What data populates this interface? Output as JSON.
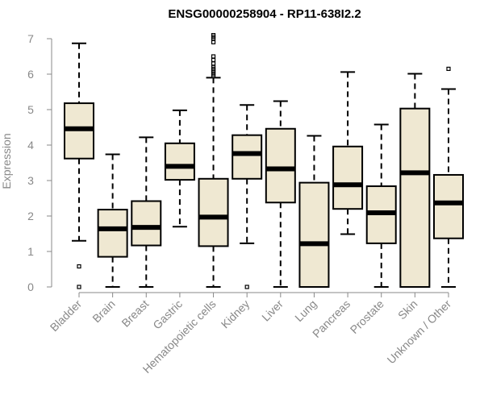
{
  "chart_data": {
    "type": "boxplot",
    "title": "ENSG00000258904 - RP11-638I2.2",
    "xlabel": "",
    "ylabel": "Expression",
    "ylim": [
      0,
      7
    ],
    "yticks": [
      0,
      1,
      2,
      3,
      4,
      5,
      6,
      7
    ],
    "grid": false,
    "box_fill": "#efe8d2",
    "categories": [
      "Bladder",
      "Brain",
      "Breast",
      "Gastric",
      "Hematopoietic cells",
      "Kidney",
      "Liver",
      "Lung",
      "Pancreas",
      "Prostate",
      "Skin",
      "Unknown / Other"
    ],
    "boxes": [
      {
        "whisker_low": 1.3,
        "q1": 3.62,
        "median": 4.46,
        "q3": 5.18,
        "whisker_high": 6.87,
        "outliers": [
          0.58,
          0.0
        ]
      },
      {
        "whisker_low": 0.0,
        "q1": 0.85,
        "median": 1.64,
        "q3": 2.18,
        "whisker_high": 3.74,
        "outliers": []
      },
      {
        "whisker_low": 0.0,
        "q1": 1.17,
        "median": 1.68,
        "q3": 2.42,
        "whisker_high": 4.22,
        "outliers": []
      },
      {
        "whisker_low": 1.7,
        "q1": 3.02,
        "median": 3.4,
        "q3": 4.05,
        "whisker_high": 4.98,
        "outliers": []
      },
      {
        "whisker_low": 0.0,
        "q1": 1.15,
        "median": 1.97,
        "q3": 3.05,
        "whisker_high": 5.9,
        "outliers": [
          5.95,
          6.0,
          6.05,
          6.1,
          6.15,
          6.2,
          6.3,
          6.4,
          6.5,
          6.9,
          7.0,
          7.05,
          7.1
        ]
      },
      {
        "whisker_low": 1.23,
        "q1": 3.05,
        "median": 3.76,
        "q3": 4.28,
        "whisker_high": 5.13,
        "outliers": [
          0.0
        ]
      },
      {
        "whisker_low": 0.0,
        "q1": 2.38,
        "median": 3.33,
        "q3": 4.46,
        "whisker_high": 5.24,
        "outliers": []
      },
      {
        "whisker_low": 0.0,
        "q1": 0.0,
        "median": 1.22,
        "q3": 2.94,
        "whisker_high": 4.26,
        "outliers": []
      },
      {
        "whisker_low": 1.49,
        "q1": 2.2,
        "median": 2.88,
        "q3": 3.96,
        "whisker_high": 6.06,
        "outliers": []
      },
      {
        "whisker_low": 0.0,
        "q1": 1.23,
        "median": 2.09,
        "q3": 2.84,
        "whisker_high": 4.58,
        "outliers": []
      },
      {
        "whisker_low": 0.0,
        "q1": 0.0,
        "median": 3.22,
        "q3": 5.03,
        "whisker_high": 6.01,
        "outliers": []
      },
      {
        "whisker_low": 0.0,
        "q1": 1.37,
        "median": 2.37,
        "q3": 3.16,
        "whisker_high": 5.58,
        "outliers": [
          6.15
        ]
      }
    ]
  }
}
